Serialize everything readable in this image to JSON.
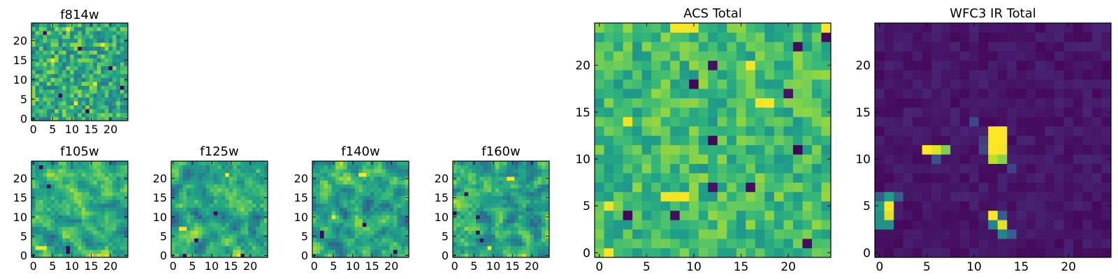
{
  "figure": {
    "description_free": true
  },
  "colors": {
    "viridis": [
      "#440154",
      "#482878",
      "#3e4989",
      "#31688e",
      "#26828e",
      "#1f9e89",
      "#35b779",
      "#6ece58",
      "#b5de2b",
      "#fde725"
    ],
    "axis_frame": "#000000",
    "background": "#ffffff"
  },
  "chart_data": [
    {
      "id": "f814w",
      "type": "heatmap",
      "title": "f814w",
      "grid_size": 25,
      "xlim": [
        0,
        24
      ],
      "ylim": [
        0,
        24
      ],
      "xticks": [
        0,
        5,
        10,
        15,
        20
      ],
      "yticks": [
        0,
        5,
        10,
        15,
        20
      ],
      "xtick_labels": [
        "0",
        "5",
        "10",
        "15",
        "20"
      ],
      "ytick_labels": [
        "0",
        "5",
        "10",
        "15",
        "20"
      ],
      "colormap": "viridis",
      "value_range": [
        0,
        1
      ],
      "pattern": "noise",
      "seed": 814,
      "noise_mean": 0.62,
      "noise_spread": 0.22,
      "smooth": 0,
      "dark_pixels": [
        [
          3,
          22
        ],
        [
          12,
          18
        ],
        [
          20,
          13
        ],
        [
          7,
          6
        ],
        [
          14,
          2
        ],
        [
          23,
          8
        ]
      ],
      "bright_pixels": [
        [
          9,
          23
        ],
        [
          18,
          19
        ],
        [
          5,
          15
        ],
        [
          16,
          9
        ],
        [
          11,
          4
        ]
      ],
      "blobs": []
    },
    {
      "id": "f105w",
      "type": "heatmap",
      "title": "f105w",
      "grid_size": 25,
      "xlim": [
        0,
        24
      ],
      "ylim": [
        0,
        24
      ],
      "xticks": [
        0,
        5,
        10,
        15,
        20
      ],
      "yticks": [
        0,
        5,
        10,
        15,
        20
      ],
      "xtick_labels": [
        "0",
        "5",
        "10",
        "15",
        "20"
      ],
      "ytick_labels": [
        "0",
        "5",
        "10",
        "15",
        "20"
      ],
      "colormap": "viridis",
      "value_range": [
        0,
        1
      ],
      "pattern": "smooth_noise",
      "seed": 105,
      "noise_mean": 0.62,
      "noise_spread": 0.26,
      "smooth": 1,
      "dark_pixels": [
        [
          2,
          23
        ],
        [
          9,
          1
        ],
        [
          9,
          2
        ],
        [
          4,
          18
        ]
      ],
      "bright_pixels": [
        [
          1,
          2
        ],
        [
          2,
          2
        ],
        [
          3,
          2
        ],
        [
          15,
          0
        ]
      ],
      "blobs": []
    },
    {
      "id": "f125w",
      "type": "heatmap",
      "title": "f125w",
      "grid_size": 25,
      "xlim": [
        0,
        24
      ],
      "ylim": [
        0,
        24
      ],
      "xticks": [
        0,
        5,
        10,
        15,
        20
      ],
      "yticks": [
        0,
        5,
        10,
        15,
        20
      ],
      "xtick_labels": [
        "0",
        "5",
        "10",
        "15",
        "20"
      ],
      "ytick_labels": [
        "0",
        "5",
        "10",
        "15",
        "20"
      ],
      "colormap": "viridis",
      "value_range": [
        0,
        1
      ],
      "pattern": "smooth_noise",
      "seed": 125,
      "noise_mean": 0.6,
      "noise_spread": 0.27,
      "smooth": 1,
      "dark_pixels": [
        [
          11,
          11
        ],
        [
          3,
          0
        ],
        [
          18,
          0
        ],
        [
          6,
          4
        ]
      ],
      "bright_pixels": [
        [
          2,
          7
        ],
        [
          3,
          7
        ],
        [
          14,
          21
        ]
      ],
      "blobs": []
    },
    {
      "id": "f140w",
      "type": "heatmap",
      "title": "f140w",
      "grid_size": 25,
      "xlim": [
        0,
        24
      ],
      "ylim": [
        0,
        24
      ],
      "xticks": [
        0,
        5,
        10,
        15,
        20
      ],
      "yticks": [
        0,
        5,
        10,
        15,
        20
      ],
      "xtick_labels": [
        "0",
        "5",
        "10",
        "15",
        "20"
      ],
      "ytick_labels": [
        "0",
        "5",
        "10",
        "15",
        "20"
      ],
      "colormap": "viridis",
      "value_range": [
        0,
        1
      ],
      "pattern": "smooth_noise",
      "seed": 140,
      "noise_mean": 0.6,
      "noise_spread": 0.27,
      "smooth": 1,
      "dark_pixels": [
        [
          2,
          5
        ],
        [
          2,
          6
        ],
        [
          21,
          1
        ],
        [
          13,
          8
        ]
      ],
      "bright_pixels": [
        [
          12,
          21
        ],
        [
          13,
          21
        ],
        [
          5,
          10
        ]
      ],
      "blobs": []
    },
    {
      "id": "f160w",
      "type": "heatmap",
      "title": "f160w",
      "grid_size": 25,
      "xlim": [
        0,
        24
      ],
      "ylim": [
        0,
        24
      ],
      "xticks": [
        0,
        5,
        10,
        15,
        20
      ],
      "yticks": [
        0,
        5,
        10,
        15,
        20
      ],
      "xtick_labels": [
        "0",
        "5",
        "10",
        "15",
        "20"
      ],
      "ytick_labels": [
        "0",
        "5",
        "10",
        "15",
        "20"
      ],
      "colormap": "viridis",
      "value_range": [
        0,
        1
      ],
      "pattern": "smooth_noise",
      "seed": 160,
      "noise_mean": 0.6,
      "noise_spread": 0.28,
      "smooth": 1,
      "dark_pixels": [
        [
          0,
          11
        ],
        [
          6,
          10
        ],
        [
          7,
          4
        ],
        [
          6,
          6
        ],
        [
          3,
          16
        ]
      ],
      "bright_pixels": [
        [
          14,
          20
        ],
        [
          15,
          20
        ],
        [
          9,
          2
        ]
      ],
      "blobs": []
    },
    {
      "id": "acs-total",
      "type": "heatmap",
      "title": "ACS Total",
      "grid_size": 25,
      "xlim": [
        0,
        24
      ],
      "ylim": [
        0,
        24
      ],
      "xticks": [
        0,
        5,
        10,
        15,
        20
      ],
      "yticks": [
        0,
        5,
        10,
        15,
        20
      ],
      "xtick_labels": [
        "0",
        "5",
        "10",
        "15",
        "20"
      ],
      "ytick_labels": [
        "0",
        "5",
        "10",
        "15",
        "20"
      ],
      "colormap": "viridis",
      "value_range": [
        0,
        1
      ],
      "pattern": "noise",
      "seed": 9001,
      "noise_mean": 0.68,
      "noise_spread": 0.16,
      "smooth": 0,
      "dark_pixels": [
        [
          12,
          20
        ],
        [
          10,
          18
        ],
        [
          21,
          22
        ],
        [
          24,
          23
        ],
        [
          21,
          11
        ],
        [
          16,
          7
        ],
        [
          12,
          7
        ],
        [
          8,
          4
        ],
        [
          3,
          4
        ],
        [
          22,
          1
        ],
        [
          20,
          17
        ],
        [
          12,
          12
        ]
      ],
      "bright_pixels": [
        [
          8,
          24
        ],
        [
          9,
          24
        ],
        [
          10,
          24
        ],
        [
          24,
          24
        ],
        [
          16,
          20
        ],
        [
          17,
          16
        ],
        [
          18,
          16
        ],
        [
          7,
          6
        ],
        [
          8,
          6
        ],
        [
          9,
          6
        ],
        [
          1,
          0
        ],
        [
          1,
          5
        ],
        [
          3,
          14
        ]
      ],
      "blobs": []
    },
    {
      "id": "wfc3-ir-total",
      "type": "heatmap",
      "title": "WFC3 IR Total",
      "grid_size": 25,
      "xlim": [
        0,
        24
      ],
      "ylim": [
        0,
        24
      ],
      "xticks": [
        0,
        5,
        10,
        15,
        20
      ],
      "yticks": [
        0,
        5,
        10,
        15,
        20
      ],
      "xtick_labels": [
        "0",
        "5",
        "10",
        "15",
        "20"
      ],
      "ytick_labels": [
        "0",
        "5",
        "10",
        "15",
        "20"
      ],
      "colormap": "viridis",
      "value_range": [
        0,
        1
      ],
      "pattern": "background",
      "seed": 77,
      "noise_mean": 0.06,
      "noise_spread": 0.04,
      "smooth": 0,
      "dark_pixels": [],
      "bright_pixels": [],
      "blobs": [
        {
          "col": 12,
          "row": 13,
          "value": 1.0
        },
        {
          "col": 13,
          "row": 13,
          "value": 1.0
        },
        {
          "col": 12,
          "row": 12,
          "value": 1.0
        },
        {
          "col": 13,
          "row": 12,
          "value": 1.0
        },
        {
          "col": 12,
          "row": 11,
          "value": 1.0
        },
        {
          "col": 13,
          "row": 11,
          "value": 0.98
        },
        {
          "col": 13,
          "row": 10,
          "value": 0.82
        },
        {
          "col": 12,
          "row": 10,
          "value": 0.9
        },
        {
          "col": 11,
          "row": 11,
          "value": 0.22
        },
        {
          "col": 11,
          "row": 12,
          "value": 0.18
        },
        {
          "col": 5,
          "row": 11,
          "value": 1.0
        },
        {
          "col": 6,
          "row": 11,
          "value": 0.95
        },
        {
          "col": 7,
          "row": 11,
          "value": 0.8
        },
        {
          "col": 6,
          "row": 10,
          "value": 0.25
        },
        {
          "col": 1,
          "row": 5,
          "value": 1.0
        },
        {
          "col": 1,
          "row": 4,
          "value": 0.95
        },
        {
          "col": 0,
          "row": 5,
          "value": 0.55
        },
        {
          "col": 0,
          "row": 4,
          "value": 0.5
        },
        {
          "col": 1,
          "row": 6,
          "value": 0.55
        },
        {
          "col": 0,
          "row": 3,
          "value": 0.5
        },
        {
          "col": 0,
          "row": 6,
          "value": 0.3
        },
        {
          "col": 1,
          "row": 3,
          "value": 0.5
        },
        {
          "col": 2,
          "row": 6,
          "value": 0.3
        },
        {
          "col": 12,
          "row": 4,
          "value": 1.0
        },
        {
          "col": 13,
          "row": 3,
          "value": 0.95
        },
        {
          "col": 12,
          "row": 3,
          "value": 0.45
        },
        {
          "col": 13,
          "row": 2,
          "value": 0.45
        },
        {
          "col": 14,
          "row": 2,
          "value": 0.3
        },
        {
          "col": 13,
          "row": 4,
          "value": 0.3
        },
        {
          "col": 10,
          "row": 14,
          "value": 0.22
        },
        {
          "col": 14,
          "row": 9,
          "value": 0.2
        }
      ]
    }
  ]
}
